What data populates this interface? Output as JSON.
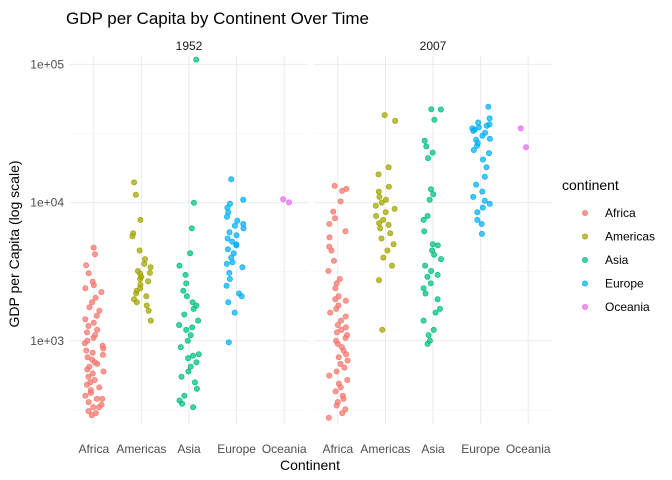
{
  "chart_data": {
    "type": "scatter",
    "title": "GDP per Capita by Continent Over Time",
    "xlabel": "Continent",
    "ylabel": "GDP per Capita (log scale)",
    "y_scale": "log10",
    "ylim": [
      250,
      115000
    ],
    "y_ticks": [
      1000,
      10000,
      100000
    ],
    "y_tick_labels": [
      "1e+03",
      "1e+04",
      "1e+05"
    ],
    "grid": true,
    "jitter": true,
    "legend": {
      "title": "continent",
      "position": "right",
      "entries": [
        {
          "name": "Africa",
          "color": "#F8766D"
        },
        {
          "name": "Americas",
          "color": "#A3A500"
        },
        {
          "name": "Asia",
          "color": "#00BF7D"
        },
        {
          "name": "Europe",
          "color": "#00B0F6"
        },
        {
          "name": "Oceania",
          "color": "#E76BF3"
        }
      ]
    },
    "categories": [
      "Africa",
      "Americas",
      "Asia",
      "Europe",
      "Oceania"
    ],
    "facets": [
      {
        "label": "1952",
        "series": [
          {
            "name": "Africa",
            "values": [
              4725,
              4230,
              3520,
              3080,
              2670,
              2530,
              2400,
              2250,
              2050,
              1900,
              1750,
              1650,
              1520,
              1430,
              1350,
              1280,
              1200,
              1150,
              1100,
              1050,
              1000,
              960,
              920,
              880,
              850,
              820,
              790,
              760,
              730,
              700,
              680,
              650,
              620,
              600,
              580,
              550,
              520,
              500,
              480,
              460,
              440,
              420,
              400,
              380,
              360,
              345,
              330,
              310,
              300,
              290,
              330,
              380
            ]
          },
          {
            "name": "Americas",
            "values": [
              13990,
              11400,
              7500,
              6000,
              5700,
              4500,
              3900,
              3600,
              3400,
              3200,
              3050,
              2900,
              2800,
              2700,
              2550,
              2400,
              2300,
              2200,
              2100,
              2000,
              1900,
              1800,
              1650,
              1400,
              3100
            ]
          },
          {
            "name": "Asia",
            "values": [
              108382,
              9979,
              6500,
              4300,
              3500,
              3000,
              2600,
              2300,
              2100,
              1900,
              1700,
              1550,
              1400,
              1300,
              1200,
              1100,
              1000,
              900,
              800,
              750,
              700,
              650,
              600,
              550,
              500,
              450,
              400,
              370,
              350,
              330,
              780,
              1250,
              1800
            ]
          },
          {
            "name": "Europe",
            "values": [
              14734,
              10500,
              9800,
              9200,
              8500,
              7900,
              7400,
              7000,
              6500,
              6100,
              5800,
              5500,
              5200,
              4900,
              4600,
              4300,
              4000,
              3700,
              3400,
              3100,
              2800,
              2500,
              2200,
              1900,
              1600,
              973,
              5000,
              6800,
              3600,
              2100
            ]
          },
          {
            "name": "Oceania",
            "values": [
              10556,
              10040
            ]
          }
        ]
      },
      {
        "label": "2007",
        "series": [
          {
            "name": "Africa",
            "values": [
              13206,
              12570,
              12150,
              10200,
              8600,
              7700,
              7000,
              6200,
              5600,
              4800,
              4500,
              3800,
              3200,
              2800,
              2600,
              2400,
              2100,
              1950,
              1800,
              1700,
              1600,
              1500,
              1400,
              1300,
              1250,
              1200,
              1150,
              1100,
              1050,
              1000,
              950,
              900,
              850,
              800,
              760,
              720,
              680,
              640,
              600,
              560,
              520,
              490,
              460,
              430,
              400,
              380,
              360,
              340,
              320,
              300,
              277,
              2000
            ]
          },
          {
            "name": "Americas",
            "values": [
              42952,
              39000,
              18000,
              16000,
              13000,
              12000,
              11000,
              10500,
              10000,
              9500,
              9000,
              8500,
              8000,
              7500,
              7100,
              6900,
              6500,
              6000,
              5500,
              5000,
              4500,
              4000,
              3500,
              2750,
              1202
            ]
          },
          {
            "name": "Asia",
            "values": [
              47307,
              47143,
              39725,
              28000,
              25500,
              23000,
              21000,
              12500,
              11500,
              10500,
              7500,
              6200,
              4900,
              4500,
              4200,
              3900,
              3500,
              3200,
              2900,
              2600,
              2400,
              2200,
              2000,
              1700,
              1400,
              1200,
              1100,
              1000,
              950,
              3000,
              5000,
              8000,
              1600
            ]
          },
          {
            "name": "Europe",
            "values": [
              49357,
              40676,
              38000,
              36800,
              36000,
              35000,
              34400,
              33700,
              33000,
              32000,
              30500,
              29000,
              28500,
              27000,
              25700,
              24000,
              22800,
              20500,
              18000,
              15400,
              13500,
              12000,
              11000,
              10300,
              9800,
              9200,
              8500,
              7500,
              7000,
              5937
            ]
          },
          {
            "name": "Oceania",
            "values": [
              34435,
              25185
            ]
          }
        ]
      }
    ]
  }
}
